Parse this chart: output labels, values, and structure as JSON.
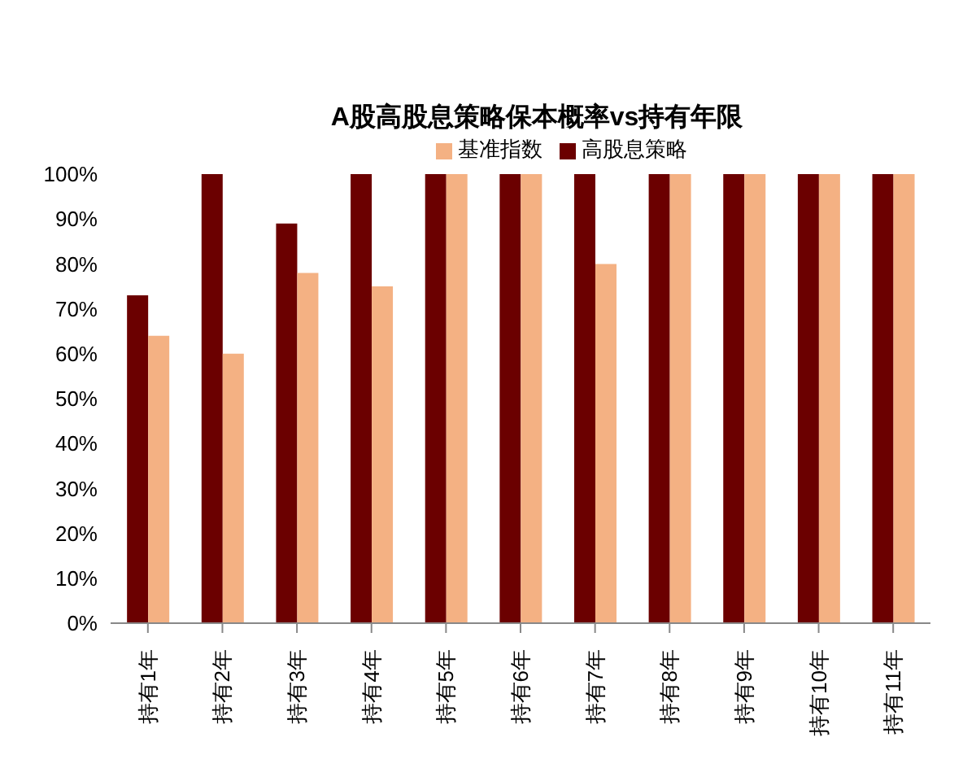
{
  "chart_data": {
    "type": "bar",
    "title": "A股高股息策略保本概率vs持有年限",
    "categories": [
      "持有1年",
      "持有2年",
      "持有3年",
      "持有4年",
      "持有5年",
      "持有6年",
      "持有7年",
      "持有8年",
      "持有9年",
      "持有10年",
      "持有11年"
    ],
    "series": [
      {
        "name": "高股息策略",
        "color": "#6b0000",
        "values": [
          73,
          100,
          89,
          100,
          100,
          100,
          100,
          100,
          100,
          100,
          100
        ]
      },
      {
        "name": "基准指数",
        "color": "#f4b183",
        "values": [
          64,
          60,
          78,
          75,
          100,
          100,
          80,
          100,
          100,
          100,
          100
        ]
      }
    ],
    "ylim": [
      0,
      100
    ],
    "yticks": [
      {
        "value": 0,
        "label": "0%"
      },
      {
        "value": 10,
        "label": "10%"
      },
      {
        "value": 20,
        "label": "20%"
      },
      {
        "value": 30,
        "label": "30%"
      },
      {
        "value": 40,
        "label": "40%"
      },
      {
        "value": 50,
        "label": "50%"
      },
      {
        "value": 60,
        "label": "60%"
      },
      {
        "value": 70,
        "label": "70%"
      },
      {
        "value": 80,
        "label": "80%"
      },
      {
        "value": 90,
        "label": "90%"
      },
      {
        "value": 100,
        "label": "100%"
      }
    ],
    "grid": false,
    "legend": "top"
  }
}
